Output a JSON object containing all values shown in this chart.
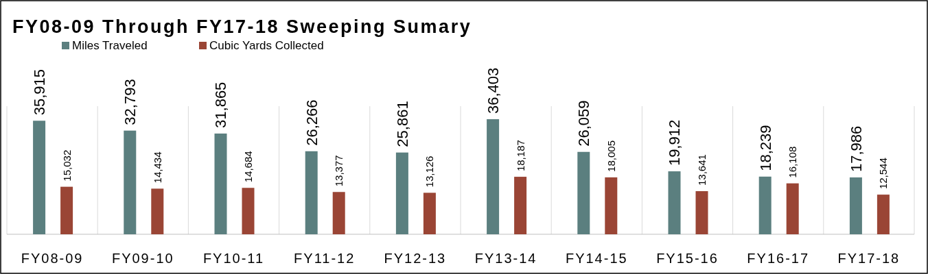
{
  "chart_data": {
    "type": "bar",
    "title": "FY08-09 Through FY17-18 Sweeping Sumary",
    "categories": [
      "FY08-09",
      "FY09-10",
      "FY10-11",
      "FY11-12",
      "FY12-13",
      "FY13-14",
      "FY14-15",
      "FY15-16",
      "FY16-17",
      "FY17-18"
    ],
    "series": [
      {
        "name": "Miles Traveled",
        "color": "#5b7f7f",
        "values": [
          35915,
          32793,
          31865,
          26266,
          25861,
          36403,
          26059,
          19912,
          18239,
          17986
        ],
        "value_labels": [
          "35,915",
          "32,793",
          "31,865",
          "26,266",
          "25,861",
          "36,403",
          "26,059",
          "19,912",
          "18,239",
          "17,986"
        ]
      },
      {
        "name": "Cubic Yards Collected",
        "color": "#9a4535",
        "values": [
          15032,
          14434,
          14684,
          13377,
          13126,
          18187,
          18005,
          13641,
          16108,
          12544
        ],
        "value_labels": [
          "15,032",
          "14,434",
          "14,684",
          "13,377",
          "13,126",
          "18,187",
          "18,005",
          "13,641",
          "16,108",
          "12,544"
        ]
      }
    ],
    "grid": "x",
    "legend": "top left"
  }
}
